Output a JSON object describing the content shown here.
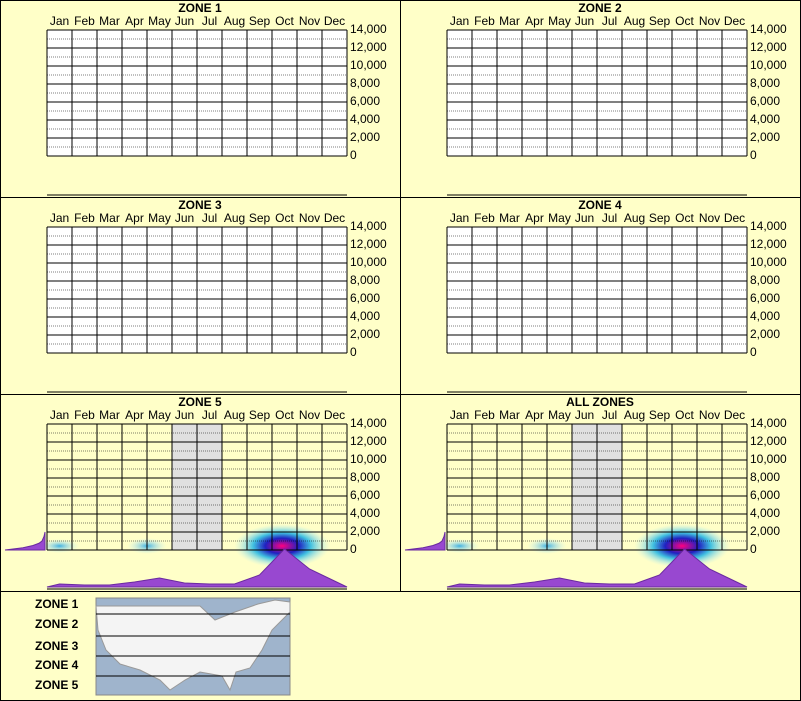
{
  "months": [
    "Jan",
    "Feb",
    "Mar",
    "Apr",
    "May",
    "Jun",
    "Jul",
    "Aug",
    "Sep",
    "Oct",
    "Nov",
    "Dec"
  ],
  "ylim": [
    0,
    14000
  ],
  "yticks": [
    {
      "value": 0,
      "label": "0"
    },
    {
      "value": 2000,
      "label": "2,000"
    },
    {
      "value": 4000,
      "label": "4,000"
    },
    {
      "value": 6000,
      "label": "6,000"
    },
    {
      "value": 8000,
      "label": "8,000"
    },
    {
      "value": 10000,
      "label": "10,000"
    },
    {
      "value": 12000,
      "label": "12,000"
    },
    {
      "value": 14000,
      "label": "14,000"
    }
  ],
  "panels": [
    {
      "title": "ZONE 1"
    },
    {
      "title": "ZONE 2"
    },
    {
      "title": "ZONE 3"
    },
    {
      "title": "ZONE 4"
    },
    {
      "title": "ZONE 5",
      "month_profile": [
        3,
        2,
        2,
        5,
        9,
        4,
        3,
        3,
        12,
        38,
        18,
        6
      ],
      "elevation_profile": {
        "elevations": [
          0,
          250,
          500,
          750,
          1000,
          1250,
          1500,
          1750,
          2000
        ],
        "values": [
          40,
          22,
          12,
          6,
          3,
          2,
          1,
          0.5,
          0
        ]
      }
    },
    {
      "title": "ALL ZONES",
      "month_profile": [
        3,
        2,
        2,
        5,
        9,
        4,
        3,
        3,
        12,
        38,
        18,
        6
      ],
      "elevation_profile": {
        "elevations": [
          0,
          250,
          500,
          750,
          1000,
          1250,
          1500,
          1750,
          2000
        ],
        "values": [
          40,
          22,
          12,
          6,
          3,
          2,
          1,
          0.5,
          0
        ]
      }
    }
  ],
  "legend": {
    "zones": [
      "ZONE 1",
      "ZONE 2",
      "ZONE 3",
      "ZONE 4",
      "ZONE 5"
    ]
  }
}
